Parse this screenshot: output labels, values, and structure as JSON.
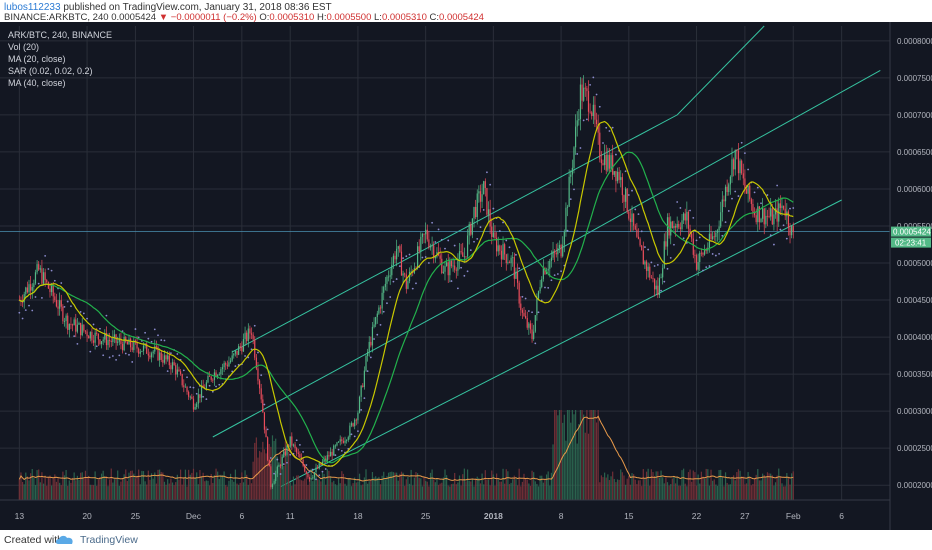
{
  "header": {
    "publisher": "lubos112233",
    "published_text": "published on TradingView.com, January 31, 2018 08:36 EST",
    "symbol_line": "BINANCE:ARKBTC, 240",
    "last": "0.0005424",
    "change": "−0.0000011 (−0.2%)",
    "o_label": "O:",
    "o": "0.0005310",
    "h_label": "H:",
    "h": "0.0005500",
    "l_label": "L:",
    "l": "0.0005310",
    "c_label": "C:",
    "c": "0.0005424"
  },
  "legend": {
    "title": "ARK/BTC, 240, BINANCE",
    "items": [
      "Vol (20)",
      "MA (20, close)",
      "SAR (0.02, 0.02, 0.2)",
      "MA (40, close)"
    ]
  },
  "price_badge": {
    "value": "0.0005424",
    "countdown": "02:23:41"
  },
  "footer": {
    "created": "Created with",
    "brand": "TradingView"
  },
  "colors": {
    "background": "#131722",
    "grid": "#2a2e39",
    "up": "#53b987",
    "down": "#eb4d5c",
    "ma20": "#c8c800",
    "ma40": "#22b14c",
    "channel": "#36c3a0",
    "sar": "#8a8acc",
    "badge": "#53b987"
  },
  "chart_data": {
    "type": "candlestick",
    "y_ticks": [
      "0.0008000",
      "0.0007500",
      "0.0007000",
      "0.0006500",
      "0.0006000",
      "0.0005500",
      "0.0005000",
      "0.0004500",
      "0.0004000",
      "0.0003500",
      "0.0003000",
      "0.0002500",
      "0.0002000"
    ],
    "y_tick_values": [
      0.0008,
      0.00075,
      0.0007,
      0.00065,
      0.0006,
      0.00055,
      0.0005,
      0.00045,
      0.0004,
      0.00035,
      0.0003,
      0.00025,
      0.0002
    ],
    "ylim": [
      0.00018,
      0.00082
    ],
    "x_ticks": [
      "13",
      "20",
      "25",
      "Dec",
      "6",
      "11",
      "18",
      "25",
      "2018",
      "8",
      "15",
      "22",
      "27",
      "Feb",
      "6"
    ],
    "x_tick_days": [
      0,
      7,
      12,
      18,
      23,
      28,
      35,
      42,
      49,
      56,
      63,
      70,
      75,
      80,
      85
    ],
    "x_tick_bold": [
      false,
      false,
      false,
      false,
      false,
      false,
      false,
      false,
      true,
      false,
      false,
      false,
      false,
      false,
      false
    ],
    "xlim_days": [
      -2,
      90
    ],
    "bars_per_day": 6,
    "price_path": [
      [
        0,
        0.00045
      ],
      [
        2,
        0.00049
      ],
      [
        5,
        0.00042
      ],
      [
        8,
        0.0004
      ],
      [
        11,
        0.00039
      ],
      [
        14,
        0.00038
      ],
      [
        16,
        0.00036
      ],
      [
        18,
        0.00031
      ],
      [
        20,
        0.00035
      ],
      [
        22,
        0.00037
      ],
      [
        24,
        0.00041
      ],
      [
        25,
        0.00032
      ],
      [
        26,
        0.0002
      ],
      [
        28,
        0.00026
      ],
      [
        30,
        0.00021
      ],
      [
        32,
        0.00024
      ],
      [
        34,
        0.00027
      ],
      [
        35,
        0.0003
      ],
      [
        36,
        0.00038
      ],
      [
        38,
        0.00048
      ],
      [
        39,
        0.00052
      ],
      [
        40,
        0.00047
      ],
      [
        42,
        0.00054
      ],
      [
        44,
        0.00049
      ],
      [
        46,
        0.00051
      ],
      [
        47,
        0.00057
      ],
      [
        48,
        0.0006
      ],
      [
        49,
        0.00053
      ],
      [
        51,
        0.0005
      ],
      [
        52,
        0.00043
      ],
      [
        53,
        0.0004
      ],
      [
        54,
        0.00049
      ],
      [
        56,
        0.00052
      ],
      [
        57,
        0.00062
      ],
      [
        58,
        0.00073
      ],
      [
        59,
        0.00072
      ],
      [
        60,
        0.00065
      ],
      [
        62,
        0.00062
      ],
      [
        64,
        0.00052
      ],
      [
        66,
        0.00046
      ],
      [
        67,
        0.00055
      ],
      [
        69,
        0.00056
      ],
      [
        70,
        0.0005
      ],
      [
        72,
        0.00054
      ],
      [
        73,
        0.0006
      ],
      [
        74,
        0.00065
      ],
      [
        75,
        0.0006
      ],
      [
        76,
        0.00057
      ],
      [
        78,
        0.00056
      ],
      [
        79,
        0.00058
      ],
      [
        80,
        0.000535
      ]
    ],
    "channel_lines": [
      [
        [
          27,
          0.000198
        ],
        [
          85,
          0.000585
        ]
      ],
      [
        [
          20,
          0.000265
        ],
        [
          56,
          0.00052
        ],
        [
          89,
          0.00076
        ]
      ],
      [
        [
          22,
          0.00038
        ],
        [
          68,
          0.0007
        ],
        [
          77,
          0.00082
        ]
      ]
    ],
    "horizontal_level": 0.0005424,
    "volume_max": 1
  }
}
